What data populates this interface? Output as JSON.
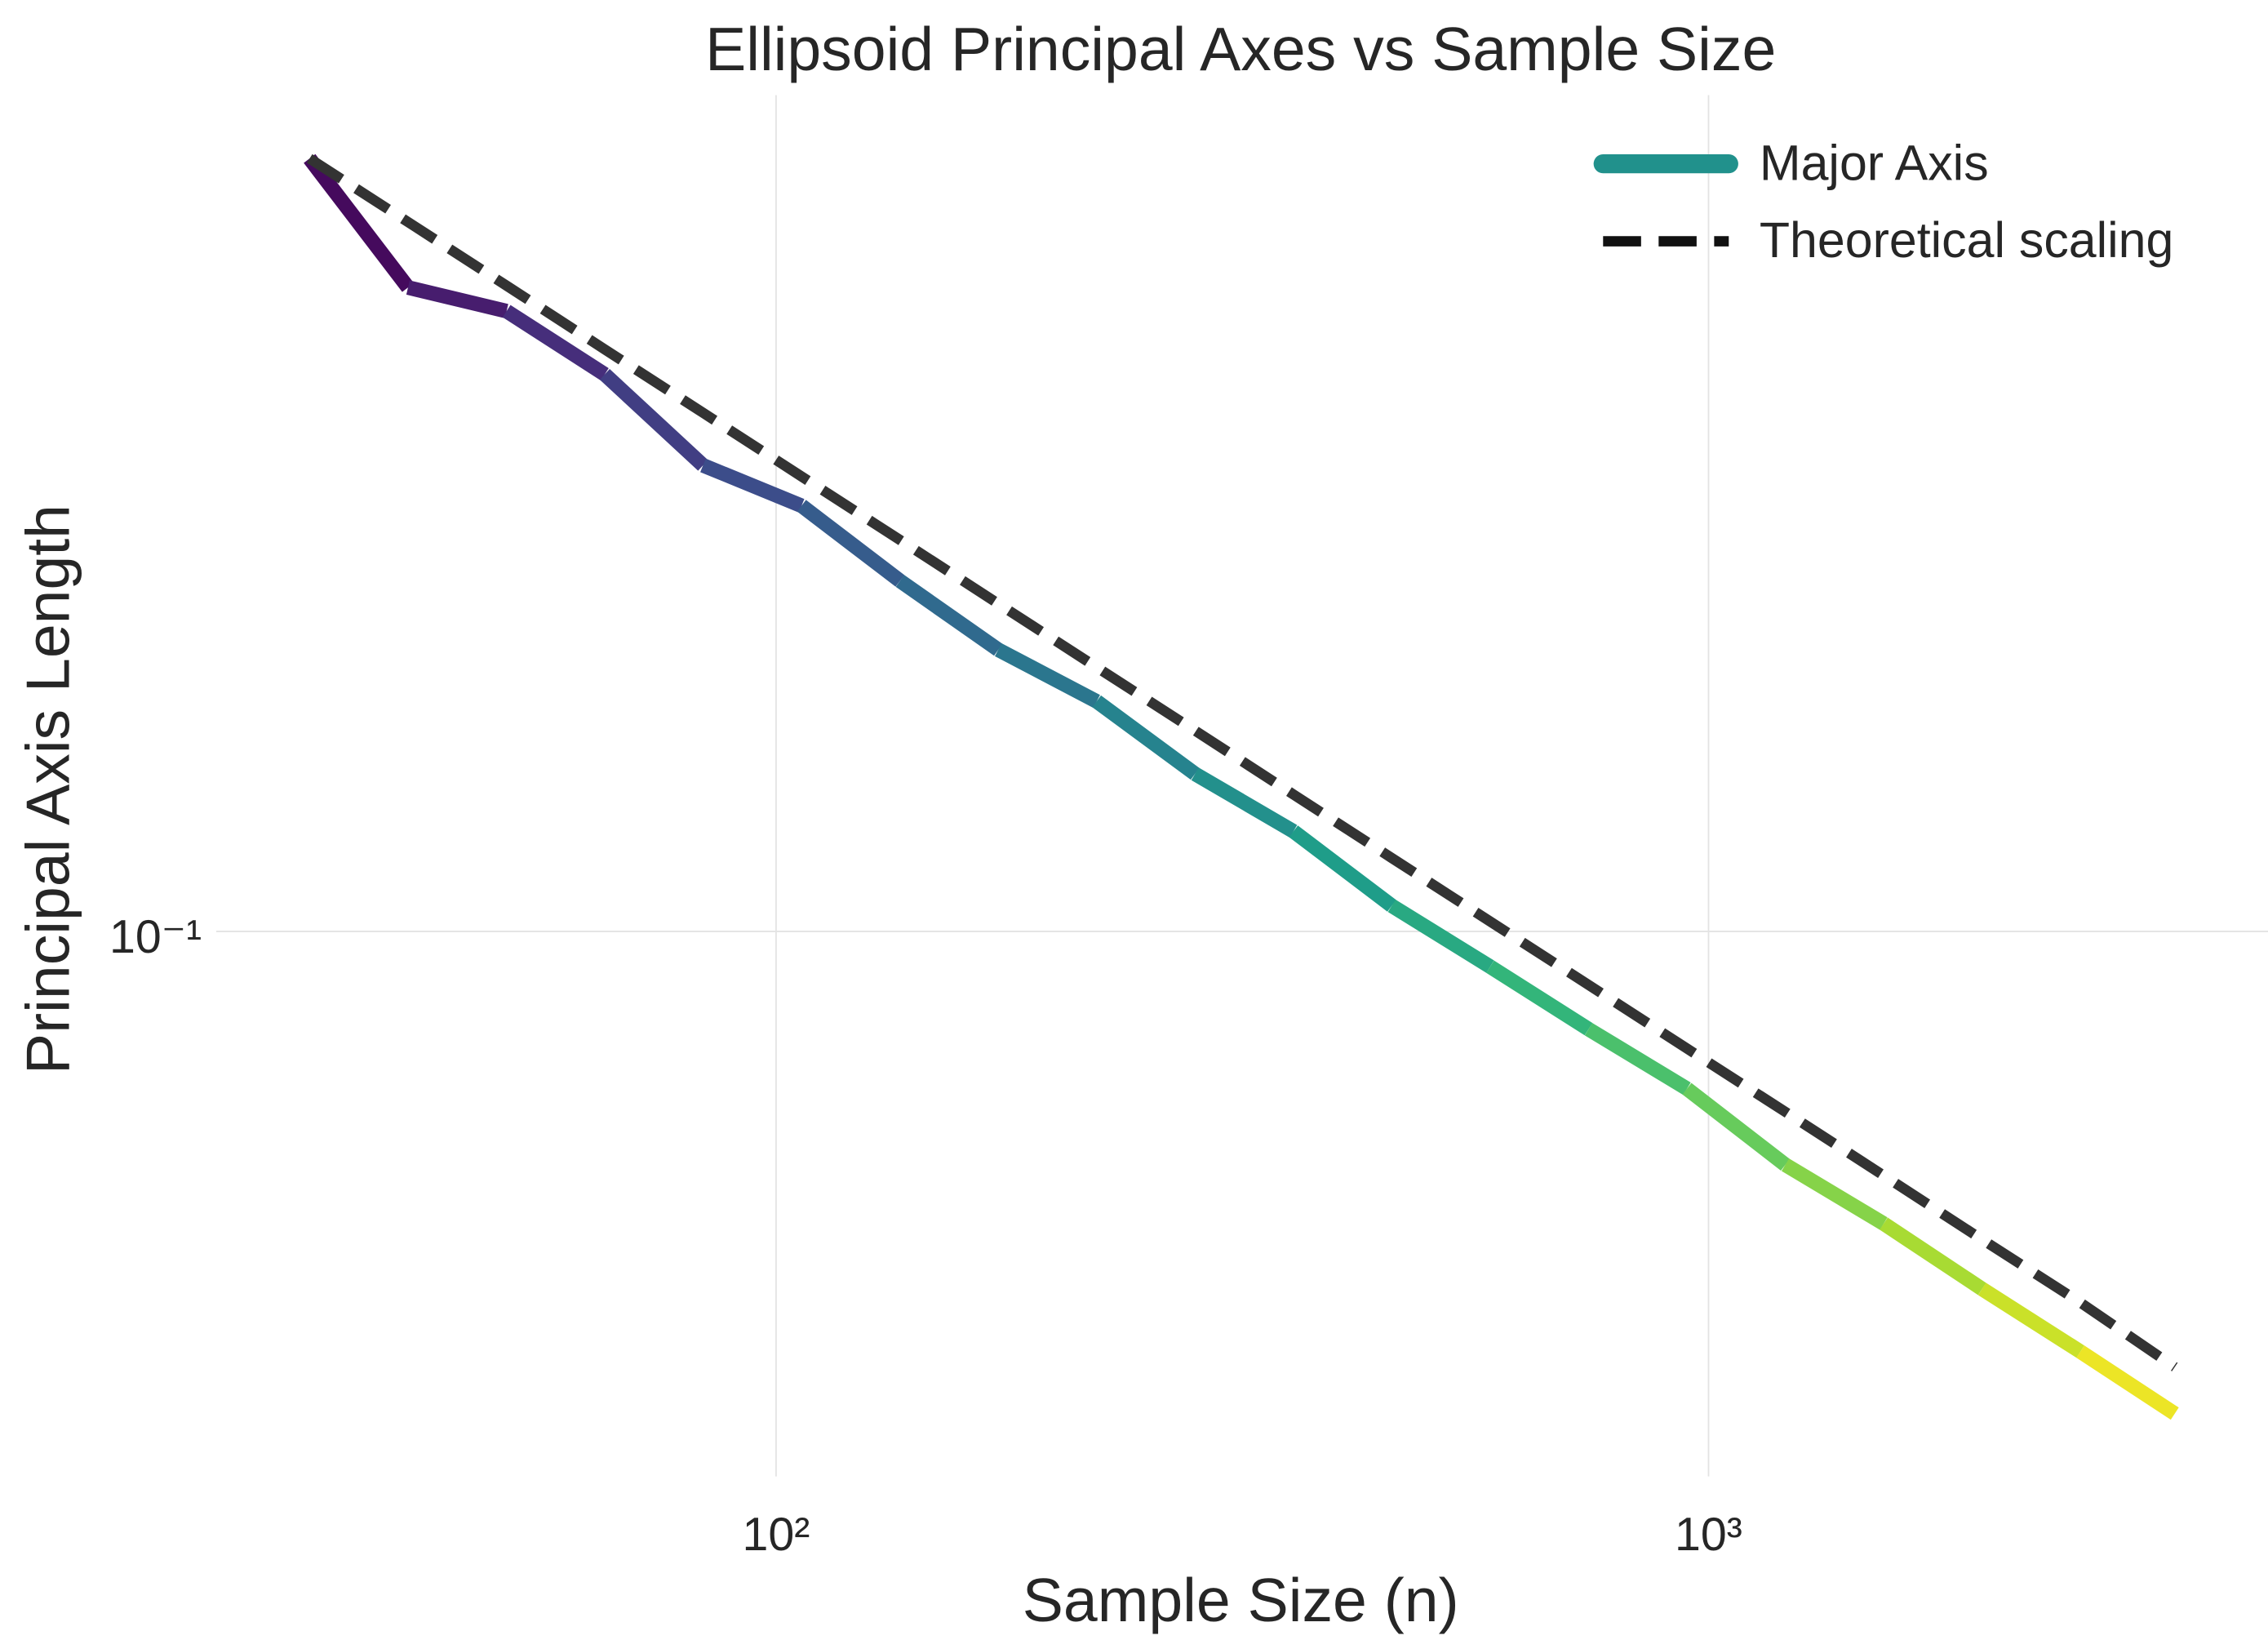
{
  "chart_data": {
    "type": "line",
    "title": "Ellipsoid Principal Axes vs Sample Size",
    "x_label": "Sample Size (n)",
    "y_label": "Principal Axis Length",
    "xscale": "log",
    "yscale": "log",
    "grid": true,
    "legend": "upper right",
    "colormap": "viridis",
    "x": [
      31.6,
      40.3,
      51.4,
      65.5,
      83.5,
      106.5,
      135.8,
      173.1,
      220.7,
      281.4,
      358.8,
      457.4,
      583.2,
      743.6,
      948.1,
      1208.8,
      1541.2,
      1965.0,
      2505.0,
      3162.3
    ],
    "series": [
      {
        "name": "Major Axis",
        "color": "#21918c",
        "style": "gradient",
        "values": [
          0.436,
          0.341,
          0.326,
          0.289,
          0.243,
          0.225,
          0.195,
          0.171,
          0.155,
          0.135,
          0.121,
          0.105,
          0.0935,
          0.083,
          0.0741,
          0.0641,
          0.0573,
          0.0506,
          0.0449,
          0.0399
        ]
      },
      {
        "name": "Theoretical scaling",
        "color": "#333333",
        "style": "dashed",
        "values": [
          0.436,
          0.3863,
          0.3422,
          0.3031,
          0.2686,
          0.2379,
          0.2108,
          0.1867,
          0.1654,
          0.1466,
          0.1298,
          0.115,
          0.1019,
          0.0903,
          0.08,
          0.0709,
          0.0628,
          0.0556,
          0.0493,
          0.0436
        ]
      }
    ],
    "xlim": [
      25.1,
      3981
    ],
    "ylim": [
      0.492,
      0.0354
    ],
    "xticks": [
      {
        "value": 100,
        "label": "10²"
      },
      {
        "value": 1000,
        "label": "10³"
      }
    ],
    "yticks": [
      {
        "value": 0.1,
        "label": "10⁻¹"
      }
    ]
  }
}
